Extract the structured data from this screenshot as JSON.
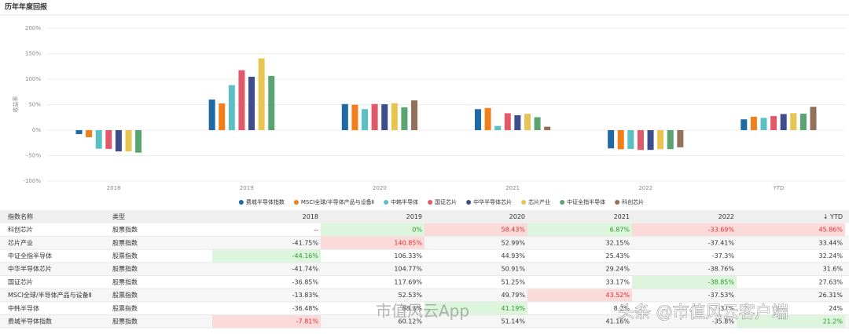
{
  "chart_data": {
    "type": "bar",
    "title": "历年年度回报",
    "y_label": "收益率",
    "categories": [
      "2018",
      "2019",
      "2020",
      "2021",
      "2022",
      "YTD"
    ],
    "ylim": [
      -100,
      200
    ],
    "yticks": [
      {
        "value": 200,
        "label": "200%"
      },
      {
        "value": 150,
        "label": "150%"
      },
      {
        "value": 100,
        "label": "100%"
      },
      {
        "value": 50,
        "label": "50%"
      },
      {
        "value": 0,
        "label": "0%"
      },
      {
        "value": -50,
        "label": "-50%"
      },
      {
        "value": -100,
        "label": "-100%"
      }
    ],
    "grid": true,
    "series": [
      {
        "name": "费城半导体指数",
        "color": "#1f6aa5",
        "values": [
          -7.81,
          60.12,
          51.14,
          41.16,
          -35.8,
          21.2
        ]
      },
      {
        "name": "MSCI全球/半导体产品与设备Ⅱ",
        "color": "#f07f1c",
        "values": [
          -13.83,
          52.53,
          49.79,
          43.52,
          -37.53,
          26.31
        ]
      },
      {
        "name": "中韩半导体",
        "color": "#5bc0c4",
        "values": [
          -36.48,
          88.3,
          41.19,
          8.3,
          -37,
          24
        ]
      },
      {
        "name": "国证芯片",
        "color": "#e15a6b",
        "values": [
          -36.85,
          117.69,
          51.25,
          33.17,
          -38.85,
          27.63
        ]
      },
      {
        "name": "中华半导体芯片",
        "color": "#3e4e8c",
        "values": [
          -41.74,
          104.77,
          50.91,
          29.24,
          -38.76,
          31.6
        ]
      },
      {
        "name": "芯片产业",
        "color": "#e8c552",
        "values": [
          -41.75,
          140.85,
          52.99,
          32.15,
          -37.41,
          33.44
        ]
      },
      {
        "name": "中证全指半导体",
        "color": "#5aa472",
        "values": [
          -44.16,
          106.33,
          44.93,
          25.43,
          -37.3,
          32.24
        ]
      },
      {
        "name": "科创芯片",
        "color": "#93705a",
        "values": [
          null,
          0,
          58.43,
          6.87,
          -33.69,
          45.86
        ]
      }
    ]
  },
  "table": {
    "headers": [
      "指数名称",
      "类型",
      "2018",
      "2019",
      "2020",
      "2021",
      "2022",
      "↓ YTD"
    ],
    "rows": [
      [
        "科创芯片",
        "股票指数",
        "--",
        "0%",
        "58.43%",
        "6.87%",
        "-33.69%",
        "45.86%"
      ],
      [
        "芯片产业",
        "股票指数",
        "-41.75%",
        "140.85%",
        "52.99%",
        "32.15%",
        "-37.41%",
        "33.44%"
      ],
      [
        "中证全指半导体",
        "股票指数",
        "-44.16%",
        "106.33%",
        "44.93%",
        "25.43%",
        "-37.3%",
        "32.24%"
      ],
      [
        "中华半导体芯片",
        "股票指数",
        "-41.74%",
        "104.77%",
        "50.91%",
        "29.24%",
        "-38.76%",
        "31.6%"
      ],
      [
        "国证芯片",
        "股票指数",
        "-36.85%",
        "117.69%",
        "51.25%",
        "33.17%",
        "-38.85%",
        "27.63%"
      ],
      [
        "MSCI全球/半导体产品与设备Ⅱ",
        "股票指数",
        "-13.83%",
        "52.53%",
        "49.79%",
        "43.52%",
        "-37.53%",
        "26.31%"
      ],
      [
        "中韩半导体",
        "股票指数",
        "-36.48%",
        "88.3%",
        "41.19%",
        "8.3%",
        "-37%",
        "24%"
      ],
      [
        "费城半导体指数",
        "股票指数",
        "-7.81%",
        "60.12%",
        "51.14%",
        "41.16%",
        "-35.8%",
        "21.2%"
      ]
    ]
  },
  "overlay": {
    "app": "市值风云App",
    "author": "头条 @市值风云客户端"
  }
}
